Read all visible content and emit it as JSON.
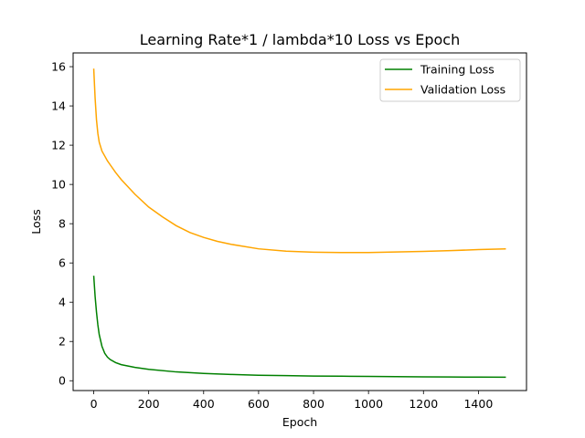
{
  "chart_data": {
    "type": "line",
    "title": "Learning Rate*1 / lambda*10 Loss vs Epoch",
    "xlabel": "Epoch",
    "ylabel": "Loss",
    "xlim": [
      -75,
      1575
    ],
    "ylim": [
      -0.5,
      16.7
    ],
    "xticks": [
      0,
      200,
      400,
      600,
      800,
      1000,
      1200,
      1400
    ],
    "yticks": [
      0,
      2,
      4,
      6,
      8,
      10,
      12,
      14,
      16
    ],
    "grid": false,
    "legend_position": "upper right",
    "series": [
      {
        "name": "Training Loss",
        "color": "#008000",
        "x": [
          0,
          5,
          10,
          15,
          20,
          30,
          40,
          50,
          60,
          80,
          100,
          150,
          200,
          300,
          400,
          500,
          600,
          700,
          800,
          900,
          1000,
          1100,
          1200,
          1300,
          1400,
          1500
        ],
        "y": [
          5.35,
          4.3,
          3.5,
          2.85,
          2.35,
          1.75,
          1.4,
          1.2,
          1.08,
          0.92,
          0.82,
          0.68,
          0.58,
          0.45,
          0.37,
          0.32,
          0.28,
          0.26,
          0.24,
          0.23,
          0.22,
          0.21,
          0.2,
          0.19,
          0.185,
          0.18
        ]
      },
      {
        "name": "Validation Loss",
        "color": "#FFA500",
        "x": [
          0,
          5,
          10,
          15,
          20,
          30,
          40,
          50,
          60,
          80,
          100,
          150,
          200,
          250,
          300,
          350,
          400,
          450,
          500,
          600,
          700,
          800,
          900,
          1000,
          1100,
          1200,
          1300,
          1400,
          1500
        ],
        "y": [
          15.9,
          14.4,
          13.3,
          12.6,
          12.15,
          11.7,
          11.45,
          11.2,
          11.0,
          10.6,
          10.25,
          9.5,
          8.85,
          8.35,
          7.9,
          7.55,
          7.3,
          7.1,
          6.95,
          6.72,
          6.6,
          6.55,
          6.53,
          6.53,
          6.56,
          6.59,
          6.63,
          6.68,
          6.72
        ]
      }
    ]
  }
}
